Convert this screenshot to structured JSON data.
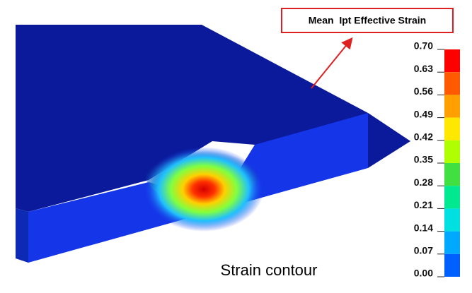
{
  "callout": {
    "text": "Mean  Ipt Effective Strain"
  },
  "caption": "Strain contour",
  "legend": {
    "labels": [
      "0.70",
      "0.63",
      "0.56",
      "0.49",
      "0.42",
      "0.35",
      "0.28",
      "0.21",
      "0.14",
      "0.07",
      "0.00"
    ]
  }
}
